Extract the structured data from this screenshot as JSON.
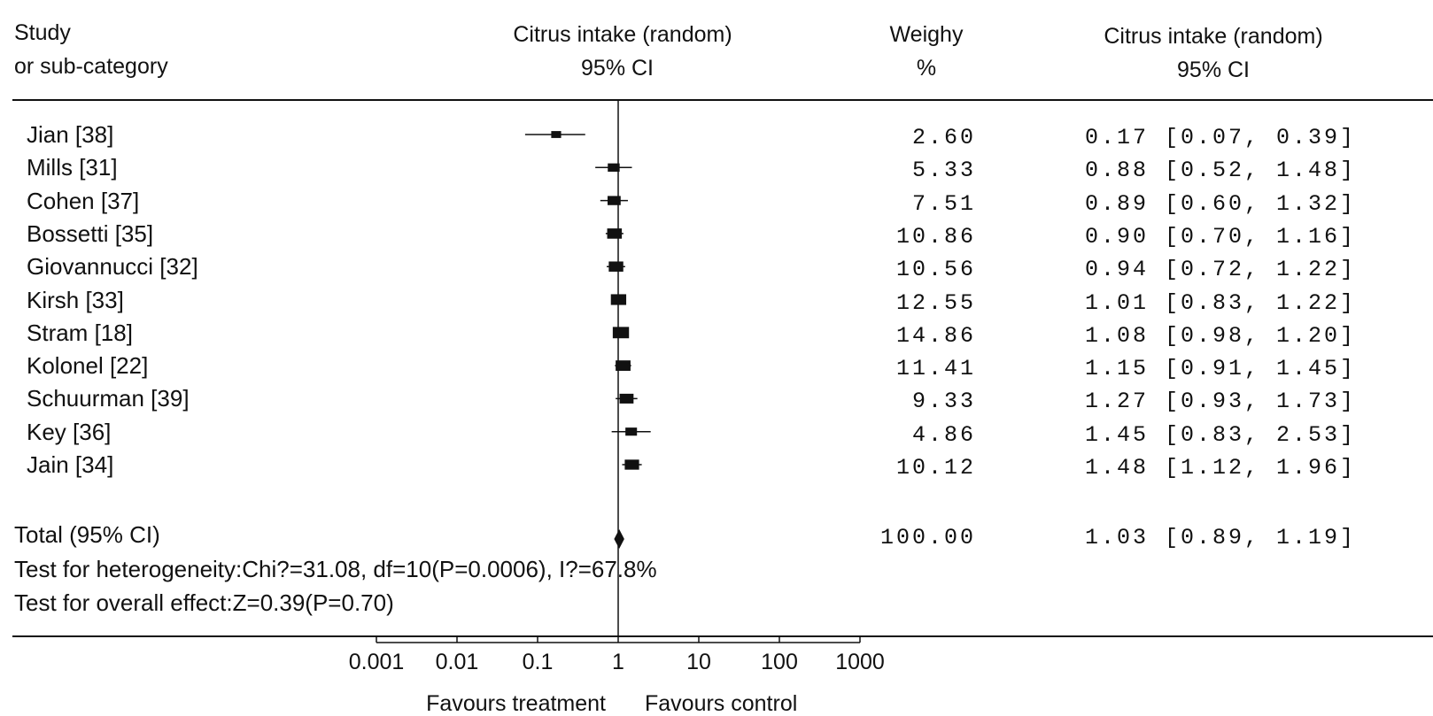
{
  "header": {
    "study_line1": "Study",
    "study_line2": "or sub-category",
    "plot_line1": "Citrus intake (random)",
    "plot_line2": "95% CI",
    "weight_line1": "Weighy",
    "weight_line2": "%",
    "ci_line1": "Citrus intake (random)",
    "ci_line2": "95% CI"
  },
  "studies": [
    {
      "name": "Jian [38]",
      "weight": "2.60",
      "ci_text": "0.17 [0.07, 0.39]",
      "or": 0.17,
      "lo": 0.07,
      "hi": 0.39,
      "w": 2.6
    },
    {
      "name": "Mills [31]",
      "weight": "5.33",
      "ci_text": "0.88 [0.52, 1.48]",
      "or": 0.88,
      "lo": 0.52,
      "hi": 1.48,
      "w": 5.33
    },
    {
      "name": "Cohen [37]",
      "weight": "7.51",
      "ci_text": "0.89 [0.60, 1.32]",
      "or": 0.89,
      "lo": 0.6,
      "hi": 1.32,
      "w": 7.51
    },
    {
      "name": "Bossetti [35]",
      "weight": "10.86",
      "ci_text": "0.90 [0.70, 1.16]",
      "or": 0.9,
      "lo": 0.7,
      "hi": 1.16,
      "w": 10.86
    },
    {
      "name": "Giovannucci [32]",
      "weight": "10.56",
      "ci_text": "0.94 [0.72, 1.22]",
      "or": 0.94,
      "lo": 0.72,
      "hi": 1.22,
      "w": 10.56
    },
    {
      "name": "Kirsh [33]",
      "weight": "12.55",
      "ci_text": "1.01 [0.83, 1.22]",
      "or": 1.01,
      "lo": 0.83,
      "hi": 1.22,
      "w": 12.55
    },
    {
      "name": "Stram [18]",
      "weight": "14.86",
      "ci_text": "1.08 [0.98, 1.20]",
      "or": 1.08,
      "lo": 0.98,
      "hi": 1.2,
      "w": 14.86
    },
    {
      "name": "Kolonel [22]",
      "weight": "11.41",
      "ci_text": "1.15 [0.91, 1.45]",
      "or": 1.15,
      "lo": 0.91,
      "hi": 1.45,
      "w": 11.41
    },
    {
      "name": "Schuurman [39]",
      "weight": "9.33",
      "ci_text": "1.27 [0.93, 1.73]",
      "or": 1.27,
      "lo": 0.93,
      "hi": 1.73,
      "w": 9.33
    },
    {
      "name": "Key [36]",
      "weight": "4.86",
      "ci_text": "1.45 [0.83, 2.53]",
      "or": 1.45,
      "lo": 0.83,
      "hi": 2.53,
      "w": 4.86
    },
    {
      "name": "Jain [34]",
      "weight": "10.12",
      "ci_text": "1.48 [1.12, 1.96]",
      "or": 1.48,
      "lo": 1.12,
      "hi": 1.96,
      "w": 10.12
    }
  ],
  "total": {
    "name": "Total (95% CI)",
    "weight": "100.00",
    "ci_text": "1.03 [0.89, 1.19]",
    "or": 1.03,
    "lo": 0.89,
    "hi": 1.19
  },
  "footer": {
    "heterogeneity": "Test for heterogeneity:Chi?=31.08, df=10(P=0.0006), I?=67.8%",
    "overall": "Test for overall effect:Z=0.39(P=0.70)"
  },
  "axis": {
    "ticks": [
      0.001,
      0.01,
      0.1,
      1,
      10,
      100,
      1000
    ],
    "tick_labels": [
      "0.001",
      "0.01",
      "0.1",
      "1",
      "10",
      "100",
      "1000"
    ],
    "scale": "log",
    "favours_left": "Favours treatment",
    "favours_right": "Favours control"
  },
  "chart_data": {
    "type": "forest",
    "title": "",
    "x_scale": "log",
    "xlim": [
      0.001,
      1000
    ],
    "reference_line": 1,
    "categories": [
      "Jian [38]",
      "Mills [31]",
      "Cohen [37]",
      "Bossetti [35]",
      "Giovannucci [32]",
      "Kirsh [33]",
      "Stram [18]",
      "Kolonel [22]",
      "Schuurman [39]",
      "Key [36]",
      "Jain [34]",
      "Total (95% CI)"
    ],
    "estimate": [
      0.17,
      0.88,
      0.89,
      0.9,
      0.94,
      1.01,
      1.08,
      1.15,
      1.27,
      1.45,
      1.48,
      1.03
    ],
    "ci_lower": [
      0.07,
      0.52,
      0.6,
      0.7,
      0.72,
      0.83,
      0.98,
      0.91,
      0.93,
      0.83,
      1.12,
      0.89
    ],
    "ci_upper": [
      0.39,
      1.48,
      1.32,
      1.16,
      1.22,
      1.22,
      1.2,
      1.45,
      1.73,
      2.53,
      1.96,
      1.19
    ],
    "weight_pct": [
      2.6,
      5.33,
      7.51,
      10.86,
      10.56,
      12.55,
      14.86,
      11.41,
      9.33,
      4.86,
      10.12,
      100.0
    ]
  },
  "colors": {
    "ink": "#111111",
    "background": "#ffffff"
  }
}
